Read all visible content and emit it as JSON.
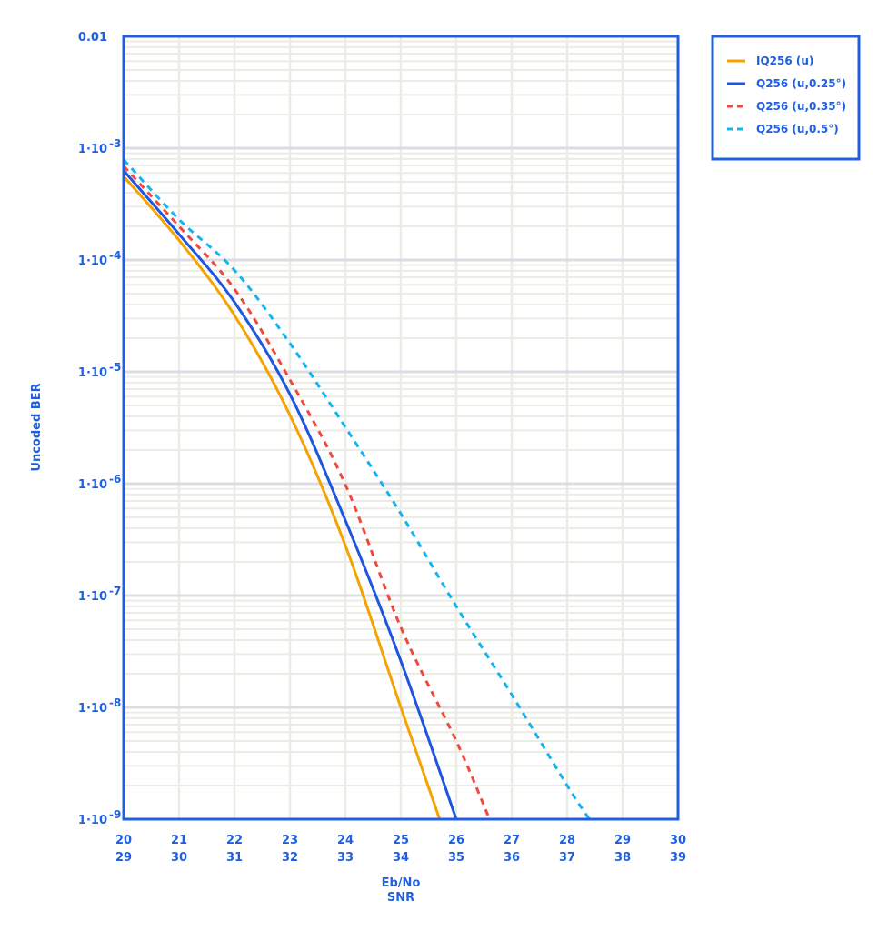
{
  "chart_data": {
    "type": "line",
    "title": "",
    "xlabel": "Eb/No",
    "xlabel2": "SNR",
    "ylabel": "Uncoded BER",
    "xlim": [
      20,
      30
    ],
    "ylim": [
      1e-09,
      0.01
    ],
    "yscale": "log",
    "grid": true,
    "legend_position": "right-top",
    "x_ticks": [
      20,
      21,
      22,
      23,
      24,
      25,
      26,
      27,
      28,
      29,
      30
    ],
    "x_ticks_secondary": [
      29,
      30,
      31,
      32,
      33,
      34,
      35,
      36,
      37,
      38,
      39
    ],
    "y_ticks": [
      {
        "value": 0.01,
        "base": "0.01",
        "exp": ""
      },
      {
        "value": 0.001,
        "base": "1·10",
        "exp": "-3"
      },
      {
        "value": 0.0001,
        "base": "1·10",
        "exp": "-4"
      },
      {
        "value": 1e-05,
        "base": "1·10",
        "exp": "-5"
      },
      {
        "value": 1e-06,
        "base": "1·10",
        "exp": "-6"
      },
      {
        "value": 1e-07,
        "base": "1·10",
        "exp": "-7"
      },
      {
        "value": 1e-08,
        "base": "1·10",
        "exp": "-8"
      },
      {
        "value": 1e-09,
        "base": "1·10",
        "exp": "-9"
      }
    ],
    "series": [
      {
        "name": "IQ256 (u)",
        "color": "#f5a300",
        "dash": "solid",
        "x": [
          20,
          21,
          22,
          23,
          24,
          25,
          25.7
        ],
        "values": [
          0.00056,
          0.00015,
          3.2e-05,
          4.1e-06,
          2.8e-07,
          1e-08,
          1e-09
        ]
      },
      {
        "name": "Q256 (u,0.25°)",
        "color": "#1f56e0",
        "dash": "solid",
        "x": [
          20,
          21,
          22,
          23,
          24,
          25,
          26
        ],
        "values": [
          0.00063,
          0.00017,
          4.2e-05,
          6.3e-06,
          4.7e-07,
          2.6e-08,
          1e-09
        ]
      },
      {
        "name": "Q256 (u,0.35°)",
        "color": "#f04a3e",
        "dash": "dashed",
        "x": [
          20,
          21,
          22,
          23,
          24,
          25,
          26,
          26.6
        ],
        "values": [
          0.00069,
          0.0002,
          5.5e-05,
          8.5e-06,
          9.8e-07,
          5.2e-08,
          5e-09,
          1e-09
        ]
      },
      {
        "name": "Q256 (u,0.5°)",
        "color": "#14b4f0",
        "dash": "dashed",
        "x": [
          20,
          21,
          22,
          23,
          24,
          25,
          26,
          27,
          28,
          28.4
        ],
        "values": [
          0.00079,
          0.00023,
          8.1e-05,
          1.8e-05,
          3.2e-06,
          5.4e-07,
          8e-08,
          1.3e-08,
          2e-09,
          1e-09
        ]
      }
    ]
  },
  "colors": {
    "axis": "#1f5fe0",
    "label": "#1f5fe0",
    "grid_major_h": "#dcdce2",
    "grid_minor": "#ececE6",
    "grid_v": "#ecebe4"
  }
}
